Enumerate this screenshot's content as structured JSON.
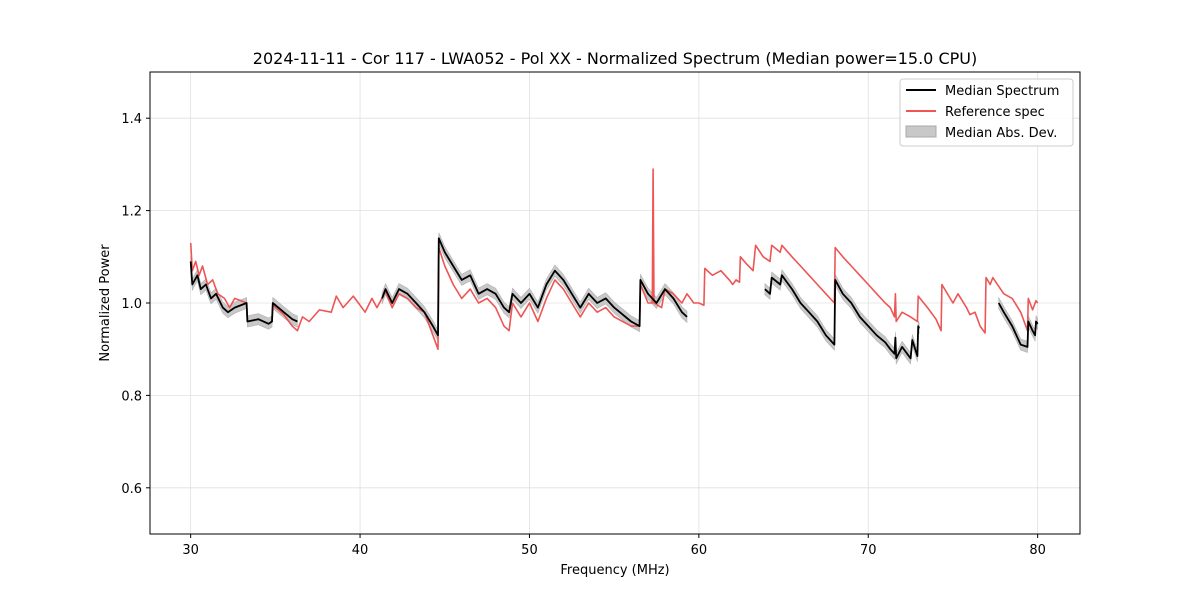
{
  "chart_data": {
    "type": "line",
    "title": "2024-11-11 - Cor 117 - LWA052 - Pol XX - Normalized Spectrum (Median power=15.0 CPU)",
    "xlabel": "Frequency (MHz)",
    "ylabel": "Normalized Power",
    "xlim": [
      27.6,
      82.5
    ],
    "ylim": [
      0.5,
      1.5
    ],
    "xticks": [
      30,
      40,
      50,
      60,
      70,
      80
    ],
    "xtick_labels": [
      "30",
      "40",
      "50",
      "60",
      "70",
      "80"
    ],
    "yticks": [
      0.6,
      0.8,
      1.0,
      1.2,
      1.4
    ],
    "ytick_labels": [
      "0.6",
      "0.8",
      "1.0",
      "1.2",
      "1.4"
    ],
    "grid": true,
    "legend_position": "top-right",
    "legend": [
      {
        "label": "Median Spectrum",
        "kind": "line",
        "color": "#000000"
      },
      {
        "label": "Reference spec",
        "kind": "line",
        "color": "#ee5555"
      },
      {
        "label": "Median Abs. Dev.",
        "kind": "band",
        "color": "#c8c8c8"
      }
    ],
    "series": [
      {
        "name": "Reference spec",
        "color": "#ee5555",
        "segments": [
          [
            [
              30.0,
              1.13
            ],
            [
              30.1,
              1.07
            ],
            [
              30.3,
              1.09
            ],
            [
              30.5,
              1.06
            ],
            [
              30.7,
              1.08
            ],
            [
              31.0,
              1.04
            ],
            [
              31.3,
              1.05
            ],
            [
              31.6,
              1.02
            ],
            [
              32.0,
              1.01
            ],
            [
              32.3,
              0.99
            ],
            [
              32.6,
              1.01
            ],
            [
              33.3,
              1.0
            ],
            [
              33.35,
              0.96
            ],
            [
              34.0,
              0.965
            ],
            [
              34.6,
              0.955
            ],
            [
              34.8,
              0.96
            ],
            [
              34.85,
              0.995
            ],
            [
              35.5,
              0.975
            ],
            [
              36.0,
              0.95
            ],
            [
              36.3,
              0.94
            ],
            [
              36.6,
              0.97
            ],
            [
              37.0,
              0.96
            ],
            [
              37.6,
              0.985
            ],
            [
              38.3,
              0.98
            ],
            [
              38.6,
              1.015
            ],
            [
              39.0,
              0.99
            ],
            [
              39.6,
              1.015
            ],
            [
              39.9,
              1.0
            ],
            [
              40.3,
              0.98
            ],
            [
              40.7,
              1.01
            ],
            [
              41.0,
              0.99
            ],
            [
              41.5,
              1.025
            ],
            [
              41.9,
              0.99
            ],
            [
              42.3,
              1.02
            ],
            [
              42.8,
              1.01
            ],
            [
              43.3,
              0.99
            ],
            [
              43.8,
              0.98
            ],
            [
              44.3,
              0.93
            ],
            [
              44.6,
              0.9
            ],
            [
              44.65,
              1.12
            ],
            [
              45.0,
              1.08
            ],
            [
              45.5,
              1.04
            ],
            [
              46.0,
              1.01
            ],
            [
              46.5,
              1.03
            ],
            [
              47.0,
              1.0
            ],
            [
              47.5,
              1.01
            ],
            [
              48.0,
              0.99
            ],
            [
              48.5,
              0.95
            ],
            [
              48.8,
              0.94
            ],
            [
              49.0,
              1.0
            ],
            [
              49.5,
              0.97
            ],
            [
              50.0,
              1.0
            ],
            [
              50.5,
              0.96
            ],
            [
              51.0,
              1.01
            ],
            [
              51.5,
              1.05
            ],
            [
              52.0,
              1.03
            ],
            [
              52.5,
              1.0
            ],
            [
              53.0,
              0.97
            ],
            [
              53.5,
              1.0
            ],
            [
              54.0,
              0.98
            ],
            [
              54.5,
              0.99
            ],
            [
              55.0,
              0.97
            ],
            [
              56.0,
              0.95
            ],
            [
              56.5,
              0.95
            ],
            [
              56.55,
              1.04
            ],
            [
              57.0,
              1.0
            ],
            [
              57.25,
              1.0
            ],
            [
              57.3,
              1.29
            ],
            [
              57.35,
              1.0
            ],
            [
              57.8,
              0.99
            ],
            [
              58.0,
              1.03
            ],
            [
              58.5,
              1.02
            ],
            [
              59.0,
              1.0
            ],
            [
              59.3,
              1.02
            ],
            [
              59.7,
              1.0
            ],
            [
              60.0,
              1.0
            ],
            [
              60.3,
              0.995
            ],
            [
              60.35,
              1.075
            ],
            [
              60.8,
              1.06
            ],
            [
              61.3,
              1.07
            ],
            [
              61.8,
              1.05
            ],
            [
              62.0,
              1.04
            ],
            [
              62.2,
              1.05
            ],
            [
              62.4,
              1.045
            ],
            [
              62.45,
              1.1
            ],
            [
              62.8,
              1.085
            ],
            [
              63.2,
              1.07
            ],
            [
              63.35,
              1.125
            ],
            [
              63.8,
              1.1
            ],
            [
              64.2,
              1.09
            ],
            [
              64.3,
              1.125
            ],
            [
              64.8,
              1.11
            ],
            [
              64.9,
              1.125
            ],
            [
              65.5,
              1.1
            ],
            [
              66.0,
              1.08
            ],
            [
              66.5,
              1.06
            ],
            [
              67.0,
              1.04
            ],
            [
              67.5,
              1.02
            ],
            [
              68.0,
              1.0
            ],
            [
              68.05,
              1.12
            ],
            [
              68.5,
              1.1
            ],
            [
              69.0,
              1.08
            ],
            [
              69.5,
              1.06
            ],
            [
              70.0,
              1.04
            ],
            [
              70.5,
              1.02
            ],
            [
              71.0,
              1.0
            ],
            [
              71.3,
              0.99
            ],
            [
              71.55,
              0.97
            ],
            [
              71.6,
              1.02
            ],
            [
              71.65,
              0.96
            ],
            [
              72.0,
              0.98
            ],
            [
              72.5,
              0.97
            ],
            [
              72.9,
              0.96
            ],
            [
              72.95,
              1.015
            ],
            [
              73.5,
              0.99
            ],
            [
              74.0,
              0.965
            ],
            [
              74.3,
              0.94
            ],
            [
              74.35,
              1.04
            ],
            [
              75.0,
              1.0
            ],
            [
              75.3,
              1.02
            ],
            [
              75.8,
              0.99
            ],
            [
              76.0,
              0.975
            ],
            [
              76.3,
              0.98
            ],
            [
              76.6,
              0.95
            ],
            [
              76.9,
              0.935
            ],
            [
              76.95,
              1.055
            ],
            [
              77.2,
              1.04
            ],
            [
              77.35,
              1.055
            ],
            [
              78.0,
              1.02
            ],
            [
              78.5,
              1.01
            ],
            [
              79.0,
              0.98
            ],
            [
              79.4,
              0.94
            ],
            [
              79.45,
              1.01
            ],
            [
              79.7,
              0.985
            ],
            [
              79.9,
              1.005
            ],
            [
              80.0,
              1.0
            ]
          ]
        ]
      },
      {
        "name": "Median Spectrum",
        "color": "#000000",
        "mad": 0.012,
        "segments": [
          [
            [
              30.0,
              1.09
            ],
            [
              30.1,
              1.04
            ],
            [
              30.4,
              1.06
            ],
            [
              30.6,
              1.03
            ],
            [
              30.9,
              1.04
            ],
            [
              31.2,
              1.01
            ],
            [
              31.5,
              1.02
            ],
            [
              31.9,
              0.99
            ],
            [
              32.2,
              0.98
            ],
            [
              32.6,
              0.99
            ],
            [
              33.3,
              1.0
            ],
            [
              33.35,
              0.96
            ],
            [
              34.0,
              0.965
            ],
            [
              34.6,
              0.955
            ],
            [
              34.8,
              0.96
            ],
            [
              34.85,
              1.0
            ],
            [
              35.5,
              0.98
            ],
            [
              36.0,
              0.965
            ],
            [
              36.3,
              0.96
            ]
          ],
          [
            [
              41.3,
              1.01
            ],
            [
              41.5,
              1.03
            ],
            [
              41.9,
              1.0
            ],
            [
              42.3,
              1.03
            ],
            [
              42.8,
              1.02
            ],
            [
              43.3,
              1.0
            ],
            [
              43.8,
              0.98
            ],
            [
              44.3,
              0.95
            ],
            [
              44.6,
              0.93
            ],
            [
              44.65,
              1.14
            ],
            [
              45.0,
              1.11
            ],
            [
              45.5,
              1.08
            ],
            [
              46.0,
              1.05
            ],
            [
              46.5,
              1.06
            ],
            [
              47.0,
              1.02
            ],
            [
              47.5,
              1.03
            ],
            [
              48.0,
              1.02
            ],
            [
              48.5,
              0.99
            ],
            [
              48.8,
              0.98
            ],
            [
              49.0,
              1.02
            ],
            [
              49.5,
              1.0
            ],
            [
              50.0,
              1.02
            ],
            [
              50.5,
              0.99
            ],
            [
              51.0,
              1.04
            ],
            [
              51.5,
              1.07
            ],
            [
              52.0,
              1.05
            ],
            [
              52.5,
              1.02
            ],
            [
              53.0,
              0.99
            ],
            [
              53.5,
              1.02
            ],
            [
              54.0,
              1.0
            ],
            [
              54.5,
              1.01
            ],
            [
              55.0,
              0.99
            ],
            [
              56.0,
              0.96
            ],
            [
              56.5,
              0.95
            ],
            [
              56.55,
              1.05
            ],
            [
              57.0,
              1.02
            ],
            [
              57.5,
              1.0
            ],
            [
              58.0,
              1.03
            ],
            [
              58.5,
              1.01
            ],
            [
              59.0,
              0.98
            ],
            [
              59.3,
              0.97
            ]
          ],
          [
            [
              63.9,
              1.03
            ],
            [
              64.2,
              1.02
            ],
            [
              64.3,
              1.055
            ],
            [
              64.8,
              1.04
            ],
            [
              64.9,
              1.06
            ],
            [
              65.5,
              1.03
            ],
            [
              66.0,
              1.0
            ],
            [
              66.5,
              0.98
            ],
            [
              67.0,
              0.96
            ],
            [
              67.5,
              0.93
            ],
            [
              68.0,
              0.91
            ],
            [
              68.05,
              1.05
            ],
            [
              68.5,
              1.02
            ],
            [
              69.0,
              1.0
            ],
            [
              69.5,
              0.97
            ],
            [
              70.0,
              0.95
            ],
            [
              70.5,
              0.93
            ],
            [
              71.0,
              0.915
            ],
            [
              71.3,
              0.9
            ],
            [
              71.55,
              0.89
            ],
            [
              71.6,
              0.925
            ],
            [
              71.65,
              0.88
            ],
            [
              72.0,
              0.905
            ],
            [
              72.3,
              0.89
            ],
            [
              72.5,
              0.88
            ],
            [
              72.6,
              0.92
            ],
            [
              72.9,
              0.885
            ],
            [
              72.95,
              0.95
            ],
            [
              73.0,
              0.945
            ]
          ],
          [
            [
              77.7,
              1.0
            ],
            [
              78.0,
              0.98
            ],
            [
              78.5,
              0.95
            ],
            [
              79.0,
              0.91
            ],
            [
              79.4,
              0.905
            ],
            [
              79.45,
              0.96
            ],
            [
              79.7,
              0.94
            ],
            [
              79.85,
              0.93
            ],
            [
              79.9,
              0.96
            ],
            [
              80.0,
              0.955
            ]
          ]
        ]
      }
    ]
  }
}
